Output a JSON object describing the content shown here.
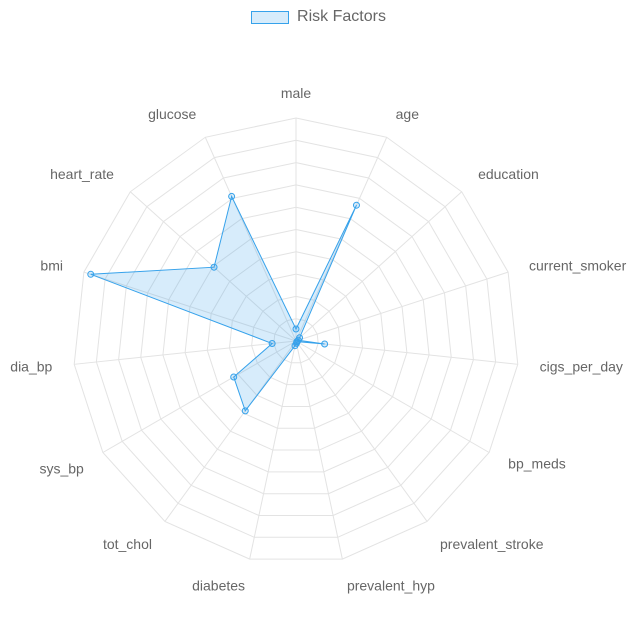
{
  "legend": {
    "label": "Risk Factors"
  },
  "colors": {
    "line": "#36a2eb",
    "fill": "rgba(54,162,235,0.2)",
    "grid": "#e3e3e3",
    "label": "#666666"
  },
  "chart_data": {
    "type": "radar",
    "labels": [
      "male",
      "age",
      "education",
      "current_smoker",
      "cigs_per_day",
      "bp_meds",
      "prevalent_stroke",
      "prevalent_hyp",
      "diabetes",
      "tot_chol",
      "sys_bp",
      "dia_bp",
      "bmi",
      "heart_rate",
      "glucose"
    ],
    "series": [
      {
        "name": "Risk Factors",
        "values": [
          0.5,
          6.2,
          0.2,
          0.1,
          1.2,
          0.05,
          0.05,
          0.1,
          0.2,
          3.6,
          3.0,
          1.0,
          9.0,
          4.6,
          6.6
        ]
      }
    ],
    "scale": {
      "min": 0,
      "max": 9.3,
      "grid_levels": 10
    },
    "legend_position": "top",
    "grid": true
  }
}
